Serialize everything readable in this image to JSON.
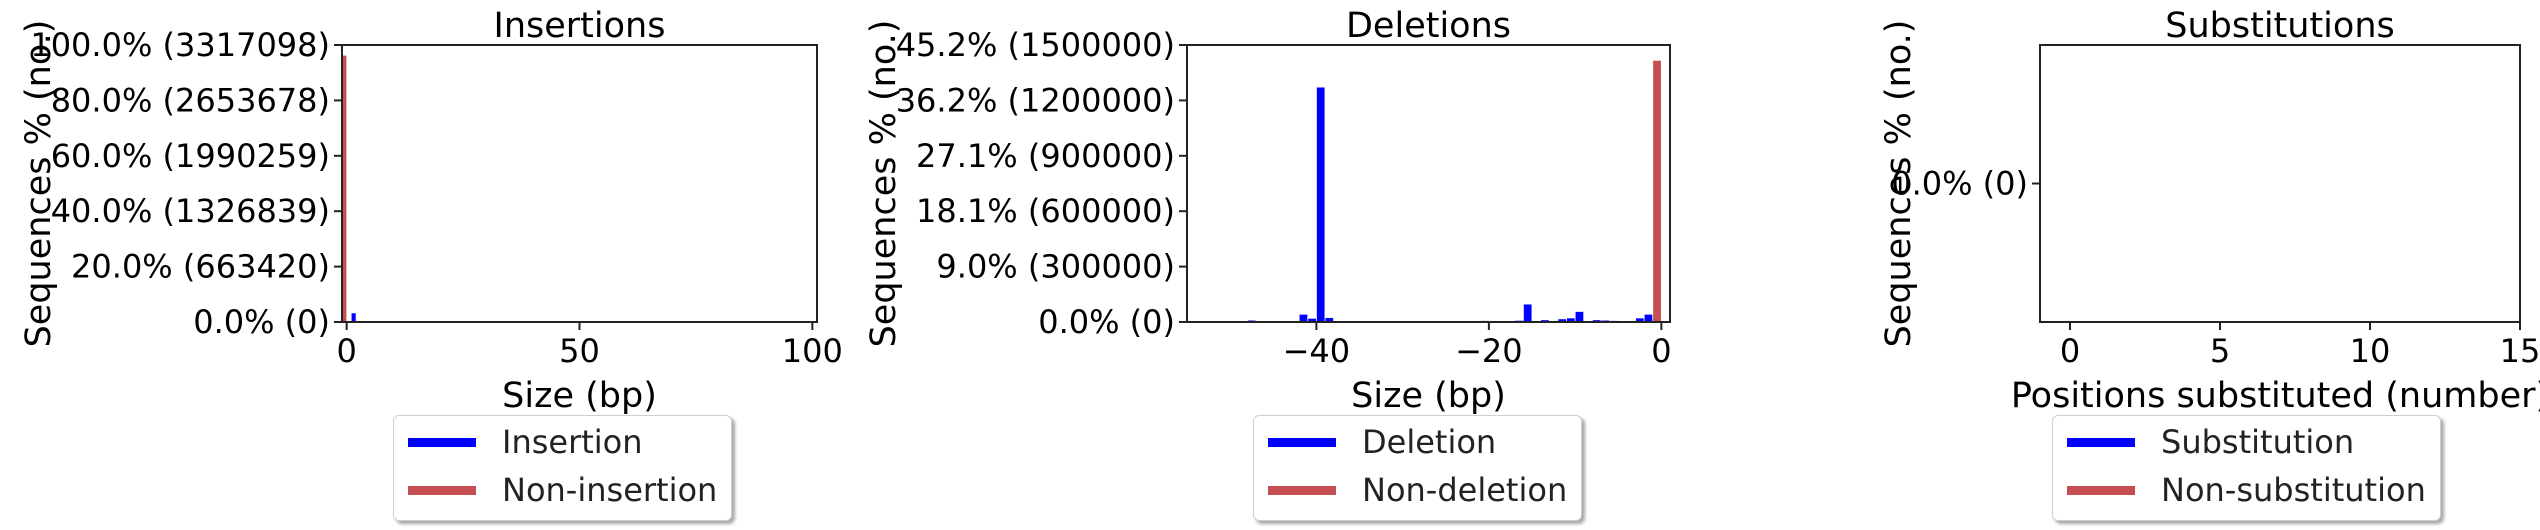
{
  "chart_data": [
    {
      "type": "bar",
      "title": "Insertions",
      "xlabel": "Size (bp)",
      "ylabel": "Sequences % (no.)",
      "xlim": [
        -1,
        101
      ],
      "ylim": [
        0,
        3317098
      ],
      "xticks": [
        0,
        50,
        100
      ],
      "xtick_labels": [
        "0",
        "50",
        "100"
      ],
      "yticks": [
        0,
        663420,
        1326839,
        1990259,
        2653678,
        3317098
      ],
      "ytick_labels": [
        "0.0% (0)",
        "20.0% (663420)",
        "40.0% (1326839)",
        "60.0% (1990259)",
        "80.0% (2653678)",
        "100.0% (3317098)"
      ],
      "bar_width": 0.9,
      "series": [
        {
          "name": "Insertion",
          "color": "#0000ff",
          "x": [
            1
          ],
          "values": [
            105000
          ],
          "x_offset": 0.5
        },
        {
          "name": "Non-insertion",
          "color": "#c44e52",
          "x": [
            0
          ],
          "values": [
            3190000
          ],
          "x_offset": -0.5
        }
      ],
      "legend": [
        "Insertion",
        "Non-insertion"
      ],
      "legend_placement": "below"
    },
    {
      "type": "bar",
      "title": "Deletions",
      "xlabel": "Size (bp)",
      "ylabel": "Sequences % (no.)",
      "xlim": [
        -55,
        1
      ],
      "ylim": [
        0,
        1500000
      ],
      "xticks": [
        -40,
        -20,
        0
      ],
      "xtick_labels": [
        "−40",
        "−20",
        "0"
      ],
      "yticks": [
        0,
        300000,
        600000,
        900000,
        1200000,
        1500000
      ],
      "ytick_labels": [
        "0.0% (0)",
        "9.0% (300000)",
        "18.1% (600000)",
        "27.1% (900000)",
        "36.2% (1200000)",
        "45.2% (1500000)"
      ],
      "bar_width": 0.9,
      "series": [
        {
          "name": "Deletion",
          "color": "#0000ff",
          "x_offset": 0.5,
          "x": [
            -48,
            -42,
            -41,
            -40,
            -39,
            -24,
            -21,
            -17,
            -16,
            -14,
            -12,
            -11,
            -10,
            -8,
            -7,
            -6,
            -5,
            -3,
            -2,
            -1
          ],
          "values": [
            8000,
            40000,
            18000,
            1270000,
            22000,
            5000,
            6000,
            7000,
            95000,
            10000,
            15000,
            20000,
            55000,
            10000,
            8000,
            6000,
            5000,
            20000,
            40000,
            18000
          ]
        },
        {
          "name": "Non-deletion",
          "color": "#c44e52",
          "x_offset": -0.5,
          "x": [
            0
          ],
          "values": [
            1415000
          ]
        }
      ],
      "legend": [
        "Deletion",
        "Non-deletion"
      ],
      "legend_placement": "below"
    },
    {
      "type": "bar",
      "title": "Substitutions",
      "xlabel": "Positions substituted (number)",
      "ylabel": "Sequences % (no.)",
      "xlim": [
        -1,
        15
      ],
      "ylim": [
        -1,
        1
      ],
      "xticks": [
        0,
        5,
        10,
        15
      ],
      "xtick_labels": [
        "0",
        "5",
        "10",
        "15"
      ],
      "yticks": [
        0
      ],
      "ytick_labels": [
        "0.0% (0)"
      ],
      "bar_width": 0.9,
      "series": [
        {
          "name": "Substitution",
          "color": "#0000ff",
          "x": [],
          "values": [],
          "x_offset": 0.5
        },
        {
          "name": "Non-substitution",
          "color": "#c44e52",
          "x": [],
          "values": [],
          "x_offset": -0.5
        }
      ],
      "legend": [
        "Substitution",
        "Non-substitution"
      ],
      "legend_placement": "below"
    }
  ]
}
